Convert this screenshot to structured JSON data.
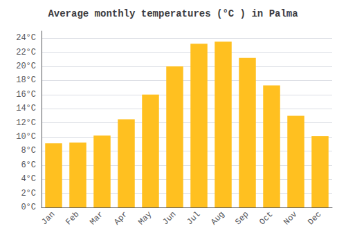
{
  "chart_data": {
    "type": "bar",
    "title": "Average monthly temperatures (°C ) in Palma",
    "categories": [
      "Jan",
      "Feb",
      "Mar",
      "Apr",
      "May",
      "Jun",
      "Jul",
      "Aug",
      "Sep",
      "Oct",
      "Nov",
      "Dec"
    ],
    "values": [
      9.1,
      9.2,
      10.2,
      12.5,
      16.0,
      20.0,
      23.2,
      23.5,
      21.2,
      17.3,
      13.0,
      10.1
    ],
    "color": "#FFC020",
    "ylim": [
      0,
      25
    ],
    "yticks": [
      {
        "value": 0,
        "label": "0°C"
      },
      {
        "value": 2,
        "label": "2°C"
      },
      {
        "value": 4,
        "label": "4°C"
      },
      {
        "value": 6,
        "label": "6°C"
      },
      {
        "value": 8,
        "label": "8°C"
      },
      {
        "value": 10,
        "label": "10°C"
      },
      {
        "value": 12,
        "label": "12°C"
      },
      {
        "value": 14,
        "label": "14°C"
      },
      {
        "value": 16,
        "label": "16°C"
      },
      {
        "value": 18,
        "label": "18°C"
      },
      {
        "value": 20,
        "label": "20°C"
      },
      {
        "value": 22,
        "label": "22°C"
      },
      {
        "value": 24,
        "label": "24°C"
      }
    ],
    "grid": true
  }
}
